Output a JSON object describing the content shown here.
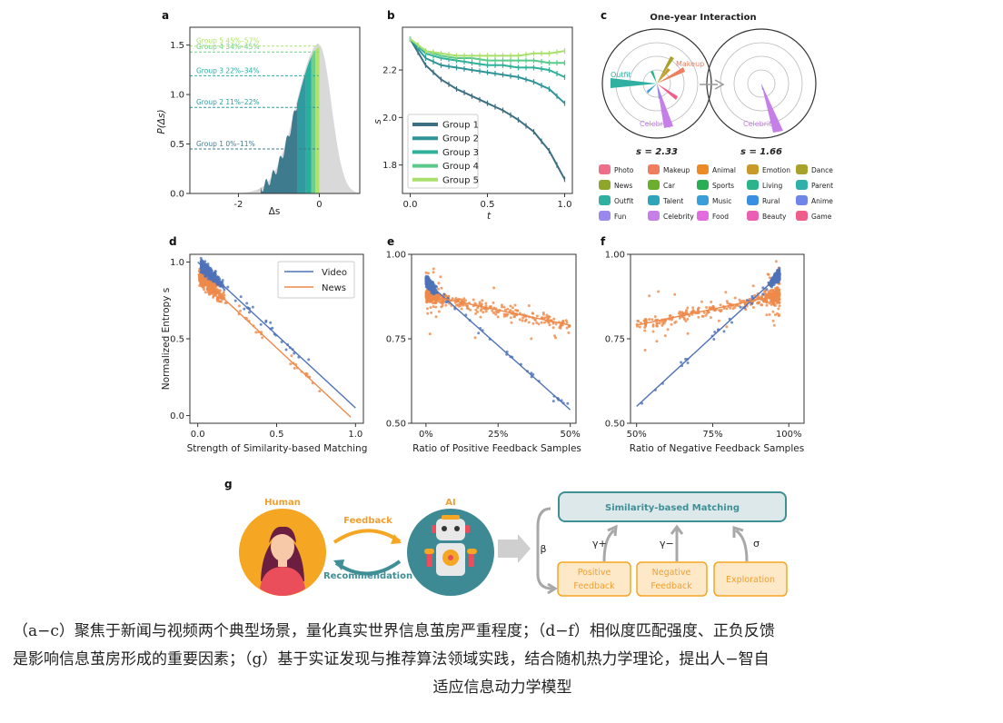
{
  "chart_data": [
    {
      "panel": "a",
      "type": "area",
      "xlabel": "Δs",
      "ylabel": "P(Δs)",
      "xticks": [
        "-2",
        "0"
      ],
      "yticks": [
        "0.0",
        "0.5",
        "1.0",
        "1.5"
      ],
      "xlim": [
        -3.2,
        1.0
      ],
      "ylim": [
        0,
        1.68
      ],
      "groups": [
        {
          "label": "Group 1",
          "range": "0%–11%",
          "y": 0.45,
          "color": "#3f7b8e"
        },
        {
          "label": "Group 2",
          "range": "11%–22%",
          "y": 0.87,
          "color": "#2f9aa0"
        },
        {
          "label": "Group 3",
          "range": "22%–34%",
          "y": 1.19,
          "color": "#25b0a0"
        },
        {
          "label": "Group 4",
          "range": "34%–45%",
          "y": 1.43,
          "color": "#6fcf8a"
        },
        {
          "label": "Group 5",
          "range": "45%–57%",
          "y": 1.49,
          "color": "#b0e36a"
        }
      ]
    },
    {
      "panel": "b",
      "type": "line",
      "xlabel": "t",
      "ylabel": "s",
      "xticks": [
        "0.0",
        "0.5",
        "1.0"
      ],
      "yticks": [
        "1.8",
        "2.0",
        "2.2"
      ],
      "xlim": [
        -0.05,
        1.05
      ],
      "ylim": [
        1.68,
        2.38
      ],
      "x": [
        0,
        0.1,
        0.2,
        0.3,
        0.4,
        0.5,
        0.6,
        0.7,
        0.8,
        0.9,
        1.0
      ],
      "series": [
        {
          "name": "Group 1",
          "color": "#3d6f82",
          "values": [
            2.33,
            2.22,
            2.16,
            2.12,
            2.09,
            2.06,
            2.03,
            1.99,
            1.94,
            1.86,
            1.74
          ]
        },
        {
          "name": "Group 2",
          "color": "#2f9498",
          "values": [
            2.33,
            2.25,
            2.22,
            2.21,
            2.2,
            2.19,
            2.18,
            2.17,
            2.15,
            2.12,
            2.06
          ]
        },
        {
          "name": "Group 3",
          "color": "#2fb19a",
          "values": [
            2.33,
            2.27,
            2.25,
            2.24,
            2.23,
            2.22,
            2.22,
            2.21,
            2.21,
            2.2,
            2.17
          ]
        },
        {
          "name": "Group 4",
          "color": "#5ac98a",
          "values": [
            2.33,
            2.28,
            2.26,
            2.25,
            2.25,
            2.24,
            2.24,
            2.24,
            2.24,
            2.23,
            2.23
          ]
        },
        {
          "name": "Group 5",
          "color": "#a9df6c",
          "values": [
            2.33,
            2.28,
            2.27,
            2.26,
            2.26,
            2.26,
            2.26,
            2.26,
            2.27,
            2.27,
            2.28
          ]
        }
      ]
    },
    {
      "panel": "c",
      "type": "radar",
      "title": "One-year Interaction",
      "values": [
        "s = 2.33",
        "s = 1.66"
      ],
      "annotations": [
        "Outfit",
        "Makeup",
        "Celebrity",
        "Celebrity"
      ],
      "legend": [
        {
          "name": "Photo",
          "color": "#ef6f8a"
        },
        {
          "name": "Makeup",
          "color": "#ee7f5e"
        },
        {
          "name": "Animal",
          "color": "#ec8a26"
        },
        {
          "name": "Emotion",
          "color": "#c89a2a"
        },
        {
          "name": "Dance",
          "color": "#a8a22c"
        },
        {
          "name": "News",
          "color": "#8ea62a"
        },
        {
          "name": "Car",
          "color": "#6aae2c"
        },
        {
          "name": "Sports",
          "color": "#2aae55"
        },
        {
          "name": "Living",
          "color": "#2bb48c"
        },
        {
          "name": "Parent",
          "color": "#2fb0a8"
        },
        {
          "name": "Outfit",
          "color": "#2fb0a0"
        },
        {
          "name": "Talent",
          "color": "#2ea5b8"
        },
        {
          "name": "Music",
          "color": "#3a9ed8"
        },
        {
          "name": "Rural",
          "color": "#3b8fe0"
        },
        {
          "name": "Anime",
          "color": "#6f86e8"
        },
        {
          "name": "Fun",
          "color": "#9a88ec"
        },
        {
          "name": "Celebrity",
          "color": "#c77fe8"
        },
        {
          "name": "Food",
          "color": "#e26be0"
        },
        {
          "name": "Beauty",
          "color": "#ea5fb4"
        },
        {
          "name": "Game",
          "color": "#ef5e8a"
        }
      ]
    },
    {
      "panel": "d",
      "type": "scatter",
      "xlabel": "Strength of Similarity-based Matching",
      "ylabel": "Normalized Entropy s",
      "xticks": [
        "0.0",
        "0.5",
        "1.0"
      ],
      "yticks": [
        "0.0",
        "0.5",
        "1.0"
      ],
      "xlim": [
        -0.05,
        1.05
      ],
      "ylim": [
        -0.05,
        1.05
      ],
      "series": [
        {
          "name": "Video",
          "color": "#4f72b8",
          "fit": [
            [
              0,
              1.0
            ],
            [
              1.0,
              0.05
            ]
          ]
        },
        {
          "name": "News",
          "color": "#ee8a4a",
          "fit": [
            [
              0,
              0.92
            ],
            [
              0.97,
              -0.01
            ]
          ]
        }
      ]
    },
    {
      "panel": "e",
      "type": "scatter",
      "xlabel": "Ratio of Positive Feedback Samples",
      "xticks": [
        "0%",
        "25%",
        "50%"
      ],
      "yticks": [
        "0.50",
        "0.75",
        "1.00"
      ],
      "xlim": [
        -0.05,
        0.52
      ],
      "ylim": [
        0.5,
        1.0
      ],
      "series": [
        {
          "name": "Video",
          "color": "#4f72b8",
          "fit": [
            [
              0,
              0.92
            ],
            [
              0.5,
              0.54
            ]
          ]
        },
        {
          "name": "News",
          "color": "#ee8a4a",
          "fit": [
            [
              0,
              0.88
            ],
            [
              0.5,
              0.79
            ]
          ]
        }
      ]
    },
    {
      "panel": "f",
      "type": "scatter",
      "xlabel": "Ratio of Negative Feedback Samples",
      "xticks": [
        "50%",
        "75%",
        "100%"
      ],
      "yticks": [
        "0.50",
        "0.75",
        "1.00"
      ],
      "xlim": [
        0.48,
        1.05
      ],
      "ylim": [
        0.5,
        1.0
      ],
      "series": [
        {
          "name": "Video",
          "color": "#4f72b8",
          "fit": [
            [
              0.5,
              0.55
            ],
            [
              0.97,
              0.94
            ]
          ]
        },
        {
          "name": "News",
          "color": "#ee8a4a",
          "fit": [
            [
              0.5,
              0.79
            ],
            [
              0.97,
              0.88
            ]
          ]
        }
      ]
    }
  ],
  "panel_labels": {
    "a": "a",
    "b": "b",
    "c": "c",
    "d": "d",
    "e": "e",
    "f": "f",
    "g": "g"
  },
  "diagram": {
    "human": "Human",
    "ai": "AI",
    "feedback": "Feedback",
    "recommendation": "Recommendation",
    "beta": "β",
    "matching": "Similarity-based Matching",
    "positive_line1": "Positive",
    "positive_line2": "Feedback",
    "negative_line1": "Negative",
    "negative_line2": "Feedback",
    "exploration": "Exploration",
    "gamma_plus": "γ+",
    "gamma_minus": "γ−",
    "sigma": "σ"
  },
  "caption": {
    "line1": "（a−c）聚焦于新闻与视频两个典型场景，量化真实世界信息茧房严重程度；（d−f）相似度匹配强度、正负反馈",
    "line2": "是影响信息茧房形成的重要因素；（g）基于实证发现与推荐算法领域实践，结合随机热力学理论，提出人−智自",
    "line3": "适应信息动力学模型"
  }
}
